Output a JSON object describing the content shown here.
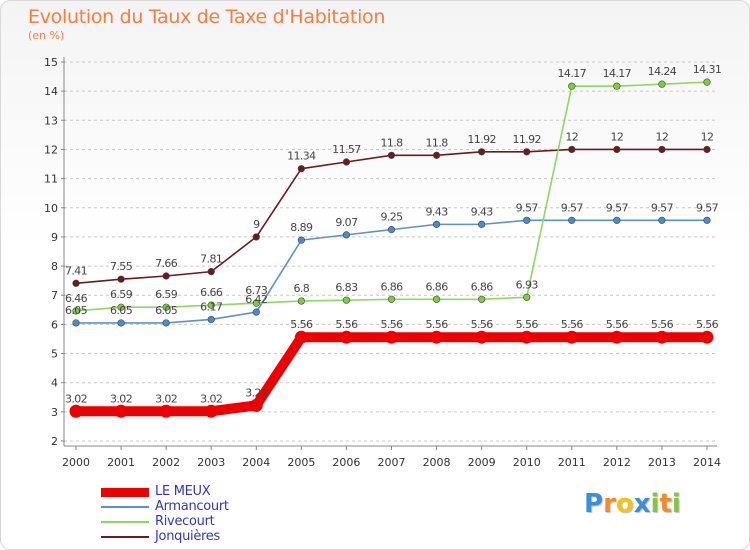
{
  "title": "Evolution du Taux de Taxe d'Habitation",
  "subtitle": "(en %)",
  "logo": {
    "letters": [
      "P",
      "r",
      "o",
      "x",
      "i",
      "t",
      "i"
    ],
    "colors": [
      "#3a8fd8",
      "#f28c28",
      "#f2c418",
      "#3a8fd8",
      "#86c540",
      "#f28c28",
      "#86c540"
    ]
  },
  "chart_data": {
    "type": "line",
    "x": [
      "2000",
      "2001",
      "2002",
      "2003",
      "2004",
      "2005",
      "2006",
      "2007",
      "2008",
      "2009",
      "2010",
      "2011",
      "2012",
      "2013",
      "2014"
    ],
    "ylim": [
      2,
      15
    ],
    "yticks": [
      "2",
      "3",
      "4",
      "5",
      "6",
      "7",
      "8",
      "9",
      "10",
      "11",
      "12",
      "13",
      "14",
      "15"
    ],
    "grid": "horizontal dashed",
    "legend_position": "bottom-left",
    "series": [
      {
        "name": "Jonquières",
        "color": "#6b1a1f",
        "point_color": "#6b1a1f",
        "values": [
          7.41,
          7.55,
          7.66,
          7.81,
          9,
          11.34,
          11.57,
          11.8,
          11.8,
          11.92,
          11.92,
          12,
          12,
          12,
          12
        ],
        "labels": [
          "7.41",
          "7.55",
          "7.66",
          "7.81",
          "9",
          "11.34",
          "11.57",
          "11.8",
          "11.8",
          "11.92",
          "11.92",
          "12",
          "12",
          "12",
          "12"
        ]
      },
      {
        "name": "Armancourt",
        "color": "#5b92c8",
        "point_color": "#4b8bc8",
        "values": [
          6.05,
          6.05,
          6.05,
          6.17,
          6.42,
          8.89,
          9.07,
          9.25,
          9.43,
          9.43,
          9.57,
          9.57,
          9.57,
          9.57,
          9.57
        ],
        "labels": [
          "6.05",
          "6.05",
          "6.05",
          "6.17",
          "6.42",
          "8.89",
          "9.07",
          "9.25",
          "9.43",
          "9.43",
          "9.57",
          "9.57",
          "9.57",
          "9.57",
          "9.57"
        ]
      },
      {
        "name": "Rivecourt",
        "color": "#8cd860",
        "point_color": "#7ccf3c",
        "values": [
          6.46,
          6.59,
          6.59,
          6.66,
          6.73,
          6.8,
          6.83,
          6.86,
          6.86,
          6.86,
          6.93,
          14.17,
          14.17,
          14.24,
          14.31
        ],
        "labels": [
          "6.46",
          "6.59",
          "6.59",
          "6.66",
          "6.73",
          "6.8",
          "6.83",
          "6.86",
          "6.86",
          "6.86",
          "6.93",
          "14.17",
          "14.17",
          "14.24",
          "14.31"
        ]
      },
      {
        "name": "LE MEUX",
        "color": "#ee0000",
        "point_color": "#ee0000",
        "thick": true,
        "values": [
          3.02,
          3.02,
          3.02,
          3.02,
          3.22,
          5.56,
          5.56,
          5.56,
          5.56,
          5.56,
          5.56,
          5.56,
          5.56,
          5.56,
          5.56
        ],
        "labels": [
          "3.02",
          "3.02",
          "3.02",
          "3.02",
          "3.22",
          "5.56",
          "5.56",
          "5.56",
          "5.56",
          "5.56",
          "5.56",
          "5.56",
          "5.56",
          "5.56",
          "5.56"
        ]
      }
    ],
    "legend": [
      "LE MEUX",
      "Armancourt",
      "Rivecourt",
      "Jonquières"
    ]
  }
}
